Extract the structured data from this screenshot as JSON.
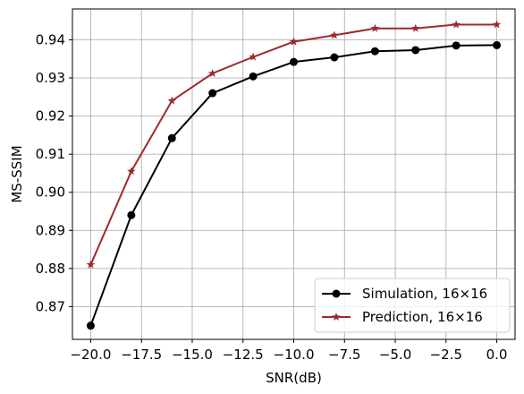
{
  "chart_data": {
    "type": "line",
    "title": "",
    "xlabel": "SNR(dB)",
    "ylabel": "MS-SSIM",
    "xlim": [
      -20.9,
      0.9
    ],
    "ylim": [
      0.8614,
      0.9481
    ],
    "xticks": [
      -20.0,
      -17.5,
      -15.0,
      -12.5,
      -10.0,
      -7.5,
      -5.0,
      -2.5,
      0.0
    ],
    "xtick_labels": [
      "−20.0",
      "−17.5",
      "−15.0",
      "−12.5",
      "−10.0",
      "−7.5",
      "−5.0",
      "−2.5",
      "0.0"
    ],
    "yticks": [
      0.87,
      0.88,
      0.89,
      0.9,
      0.91,
      0.92,
      0.93,
      0.94
    ],
    "ytick_labels": [
      "0.87",
      "0.88",
      "0.89",
      "0.90",
      "0.91",
      "0.92",
      "0.93",
      "0.94"
    ],
    "grid": true,
    "legend_position": "lower-right",
    "x": [
      -20,
      -18,
      -16,
      -14,
      -12,
      -10,
      -8,
      -6,
      -4,
      -2,
      0
    ],
    "series": [
      {
        "name": "Simulation, 16×16",
        "color": "#000000",
        "marker": "circle",
        "values": [
          0.865,
          0.894,
          0.9142,
          0.926,
          0.9304,
          0.9342,
          0.9354,
          0.937,
          0.9373,
          0.9385,
          0.9386
        ]
      },
      {
        "name": "Prediction, 16×16",
        "color": "#9e2a2b",
        "marker": "star",
        "values": [
          0.881,
          0.9055,
          0.924,
          0.9312,
          0.9355,
          0.9395,
          0.9412,
          0.943,
          0.943,
          0.944,
          0.944
        ]
      }
    ]
  }
}
